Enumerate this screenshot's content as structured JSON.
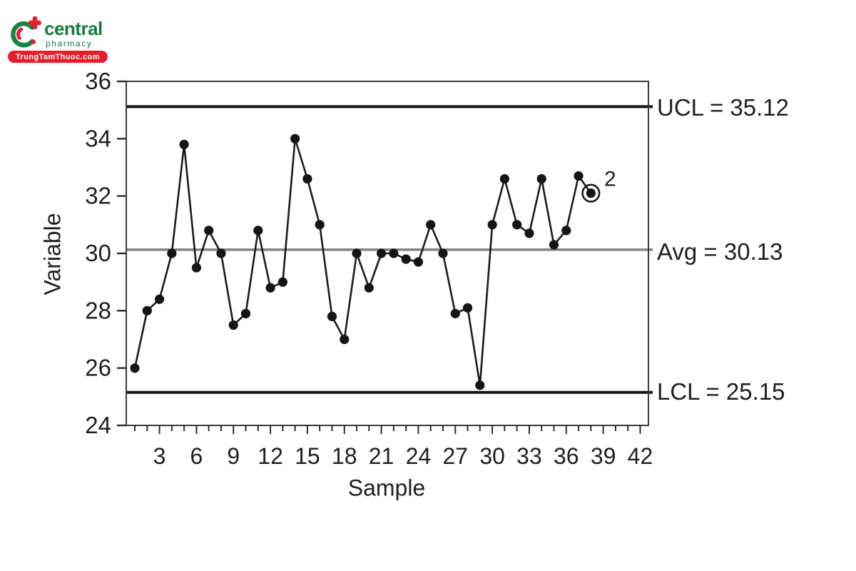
{
  "logo": {
    "brand": "central",
    "subtitle": "pharmacy",
    "badge": "TrungTamThuoc.com",
    "colors": {
      "green": "#167a3d",
      "red": "#e51e2c"
    }
  },
  "chart_data": {
    "type": "line",
    "subtype": "control-chart",
    "title": "",
    "xlabel": "Sample",
    "ylabel": "Variable",
    "ylim": [
      24,
      36
    ],
    "yticks": [
      24,
      26,
      28,
      30,
      32,
      34,
      36
    ],
    "xticks": [
      3,
      6,
      9,
      12,
      15,
      18,
      21,
      24,
      27,
      30,
      33,
      36,
      39,
      42
    ],
    "xrange": [
      1,
      42
    ],
    "grid": false,
    "legend": false,
    "x": [
      1,
      2,
      3,
      4,
      5,
      6,
      7,
      8,
      9,
      10,
      11,
      12,
      13,
      14,
      15,
      16,
      17,
      18,
      19,
      20,
      21,
      22,
      23,
      24,
      25,
      26,
      27,
      28,
      29,
      30,
      31,
      32,
      33,
      34,
      35,
      36,
      37,
      38
    ],
    "samples": [
      26.0,
      28.0,
      28.4,
      30.0,
      33.8,
      29.5,
      30.8,
      30.0,
      27.5,
      27.9,
      30.8,
      28.8,
      29.0,
      34.0,
      32.6,
      31.0,
      27.8,
      27.0,
      30.0,
      28.8,
      30.0,
      30.0,
      29.8,
      29.7,
      31.0,
      30.0,
      27.9,
      28.1,
      25.4,
      31.0,
      32.6,
      31.0,
      30.7,
      32.6,
      30.3,
      30.8,
      32.7,
      32.1
    ],
    "limits": {
      "ucl": {
        "label": "UCL = 35.12",
        "value": 35.12
      },
      "avg": {
        "label": "Avg = 30.13",
        "value": 30.13
      },
      "lcl": {
        "label": "LCL = 25.15",
        "value": 25.15
      }
    },
    "annotations": [
      {
        "sample": 38,
        "text": "2",
        "marker": "circled"
      }
    ],
    "line_color": "#1b1b1b",
    "limit_line_color": "#151515",
    "avg_line_color": "#7e7e7e"
  }
}
